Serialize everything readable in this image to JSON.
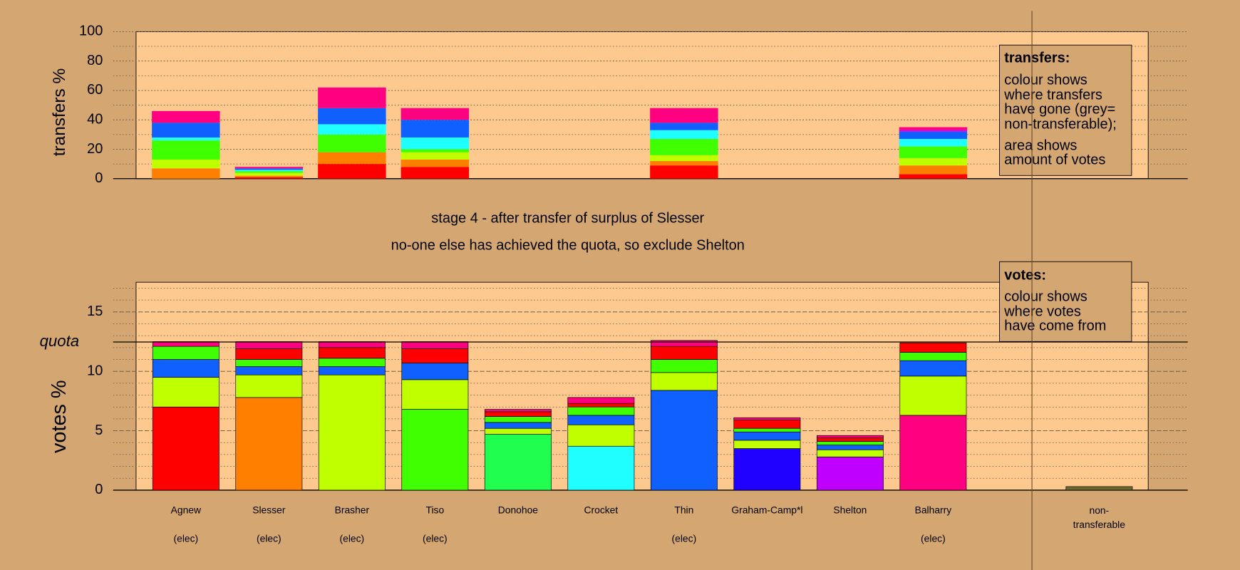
{
  "chart_data": [
    {
      "type": "stacked_bar",
      "y_label": "transfers %",
      "ylim": [
        0,
        100
      ],
      "yticks": [
        0,
        20,
        40,
        60,
        80,
        100
      ],
      "minor_step": 10,
      "grid": true,
      "series": [
        {
          "color": "#ff0000",
          "values": [
            null,
            1,
            10,
            8,
            null,
            null,
            9,
            null,
            null,
            3,
            null
          ]
        },
        {
          "color": "#ff8000",
          "values": [
            7,
            1,
            8,
            5,
            null,
            null,
            3,
            null,
            null,
            6,
            null
          ]
        },
        {
          "color": "#c0ff00",
          "values": [
            6,
            2,
            null,
            5,
            null,
            null,
            4,
            null,
            null,
            5,
            null
          ]
        },
        {
          "color": "#40ff00",
          "values": [
            13,
            1,
            12,
            2,
            null,
            null,
            11,
            null,
            null,
            8,
            null
          ]
        },
        {
          "color": "#20ffff",
          "values": [
            2,
            1,
            7,
            8,
            null,
            null,
            6,
            null,
            null,
            5,
            null
          ]
        },
        {
          "color": "#1060ff",
          "values": [
            10,
            1,
            11,
            12,
            null,
            null,
            5,
            null,
            null,
            5,
            null
          ]
        },
        {
          "color": "#c000ff",
          "values": [
            null,
            null,
            null,
            null,
            null,
            null,
            null,
            null,
            null,
            1,
            null
          ]
        },
        {
          "color": "#ff0080",
          "values": [
            8,
            1,
            14,
            8,
            null,
            null,
            10,
            null,
            null,
            2,
            null
          ]
        }
      ]
    },
    {
      "type": "stacked_bar",
      "y_label": "votes %",
      "title": "stage 4 - after transfer of surplus of Slesser",
      "subtitle": "no-one else has achieved the quota, so exclude Shelton",
      "ylim": [
        0,
        17.5
      ],
      "yticks": [
        0,
        5,
        10,
        15
      ],
      "minor_step": 1,
      "grid": true,
      "quota": {
        "value": 12.47,
        "label": "quota"
      },
      "categories": [
        "Agnew",
        "Slesser",
        "Brasher",
        "Tiso",
        "Donohoe",
        "Crocket",
        "Thin",
        "Graham-Camp*l",
        "Shelton",
        "Balharry",
        "non-transferable"
      ],
      "sublabels": [
        "(elec)",
        "(elec)",
        "(elec)",
        "(elec)",
        null,
        null,
        "(elec)",
        null,
        null,
        "(elec)",
        null
      ],
      "series": [
        {
          "name": "Brasher",
          "color": "#c0ff00",
          "values": [
            2.5,
            1.9,
            9.7,
            2.5,
            0.5,
            1.8,
            1.5,
            0.7,
            0.6,
            3.3,
            null
          ]
        },
        {
          "name": "Thin",
          "color": "#1060ff",
          "values": [
            1.5,
            0.7,
            0.7,
            1.4,
            0.5,
            0.8,
            8.4,
            0.7,
            0.4,
            1.3,
            null
          ]
        },
        {
          "name": "Tiso",
          "color": "#40ff00",
          "values": [
            1.1,
            0.6,
            0.7,
            6.8,
            0.5,
            0.7,
            1.1,
            0.3,
            0.3,
            0.7,
            null
          ]
        },
        {
          "name": "Agnew",
          "color": "#ff0000",
          "values": [
            7.0,
            0.9,
            0.9,
            1.2,
            0.4,
            0.3,
            1.1,
            0.7,
            0.3,
            0.8,
            null
          ]
        },
        {
          "name": "Balharry",
          "color": "#ff0080",
          "values": [
            0.4,
            0.6,
            0.5,
            0.6,
            0.2,
            0.5,
            0.5,
            0.2,
            0.2,
            6.3,
            null
          ]
        },
        {
          "name": "Slesser",
          "color": "#ff8000",
          "values": [
            null,
            7.8,
            null,
            null,
            null,
            null,
            null,
            null,
            null,
            null,
            null
          ]
        },
        {
          "name": "Donohoe",
          "color": "#20ff50",
          "values": [
            null,
            null,
            null,
            null,
            4.7,
            null,
            null,
            null,
            null,
            null,
            null
          ]
        },
        {
          "name": "Crocket",
          "color": "#20ffff",
          "values": [
            null,
            null,
            null,
            null,
            null,
            3.7,
            null,
            null,
            null,
            null,
            null
          ]
        },
        {
          "name": "Graham-Camp*l",
          "color": "#2000ff",
          "values": [
            null,
            null,
            null,
            null,
            null,
            null,
            null,
            3.5,
            null,
            null,
            null
          ]
        },
        {
          "name": "Shelton",
          "color": "#c000ff",
          "values": [
            null,
            null,
            null,
            null,
            null,
            null,
            null,
            null,
            2.8,
            null,
            null
          ]
        },
        {
          "name": "non-transferable",
          "color": "#6b6b30",
          "values": [
            null,
            null,
            null,
            null,
            null,
            null,
            null,
            null,
            null,
            null,
            0.3
          ]
        }
      ]
    }
  ],
  "notes": {
    "transfers": {
      "title": "transfers:",
      "lines": [
        "colour shows",
        "where transfers",
        "have gone (grey=",
        "non-transferable);"
      ],
      "lines2": [
        "area shows",
        "amount of votes"
      ]
    },
    "votes": {
      "title": "votes:",
      "lines": [
        "colour shows",
        "where votes",
        "have come from"
      ]
    }
  }
}
